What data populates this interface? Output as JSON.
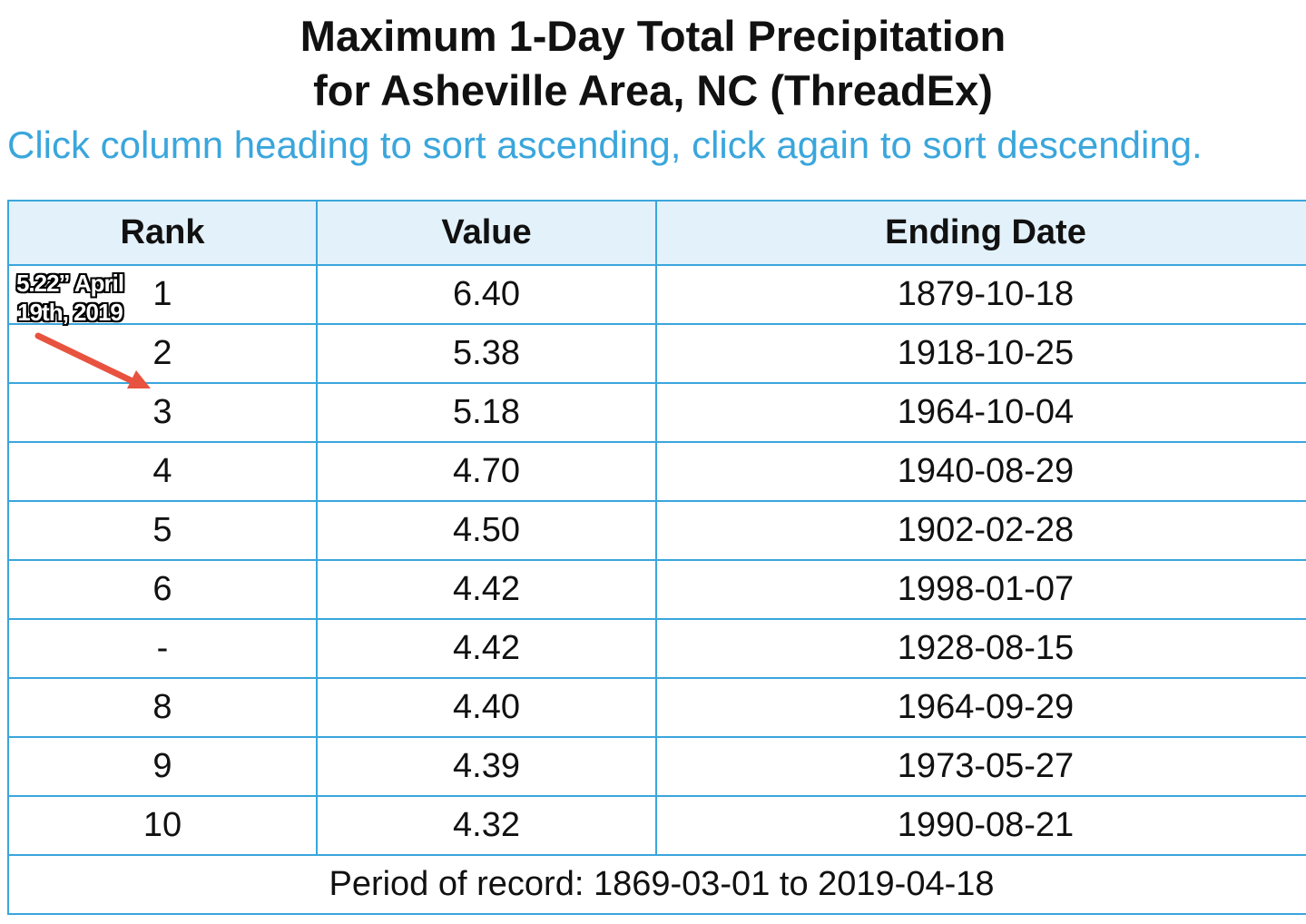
{
  "title": {
    "line1": "Maximum 1-Day Total Precipitation",
    "line2": "for Asheville Area, NC (ThreadEx)"
  },
  "subtitle": "Click column heading to sort ascending, click again to sort descending.",
  "table": {
    "headers": {
      "rank": "Rank",
      "value": "Value",
      "date": "Ending Date"
    },
    "rows": [
      {
        "rank": "1",
        "value": "6.40",
        "date": "1879-10-18"
      },
      {
        "rank": "2",
        "value": "5.38",
        "date": "1918-10-25"
      },
      {
        "rank": "3",
        "value": "5.18",
        "date": "1964-10-04"
      },
      {
        "rank": "4",
        "value": "4.70",
        "date": "1940-08-29"
      },
      {
        "rank": "5",
        "value": "4.50",
        "date": "1902-02-28"
      },
      {
        "rank": "6",
        "value": "4.42",
        "date": "1998-01-07"
      },
      {
        "rank": "-",
        "value": "4.42",
        "date": "1928-08-15"
      },
      {
        "rank": "8",
        "value": "4.40",
        "date": "1964-09-29"
      },
      {
        "rank": "9",
        "value": "4.39",
        "date": "1973-05-27"
      },
      {
        "rank": "10",
        "value": "4.32",
        "date": "1990-08-21"
      }
    ],
    "footer": "Period of record: 1869-03-01 to 2019-04-18"
  },
  "annotation": {
    "line1": "5.22” April",
    "line2": "19th, 2019",
    "arrow_color": "#e8533f"
  },
  "colors": {
    "border": "#3aa6dc",
    "header_bg": "#e3f1fa",
    "subtitle": "#3aa6dc"
  }
}
